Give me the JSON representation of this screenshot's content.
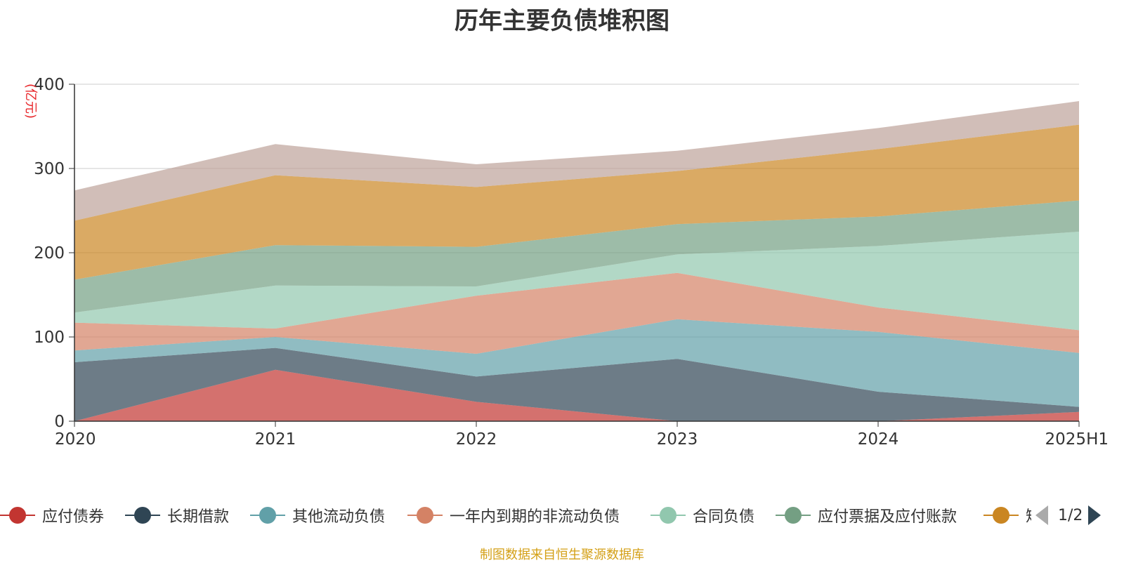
{
  "title": "历年主要负债堆积图",
  "source_note": "制图数据来自恒生聚源数据库",
  "legend_page": "1/2",
  "chart_data": {
    "type": "area",
    "stacked": true,
    "title": "历年主要负债堆积图",
    "unit": "(亿元)",
    "xlabel": "",
    "ylabel": "",
    "x": [
      "2020",
      "2021",
      "2022",
      "2023",
      "2024",
      "2025H1"
    ],
    "ylim": [
      0,
      400
    ],
    "yticks": [
      0,
      100,
      200,
      300,
      400
    ],
    "grid": true,
    "legend_position": "bottom",
    "series": [
      {
        "name": "应付债券",
        "color": "#c23531",
        "values": [
          0,
          61,
          23,
          0,
          0,
          11
        ]
      },
      {
        "name": "长期借款",
        "color": "#2f4554",
        "values": [
          70,
          26,
          30,
          74,
          35,
          6
        ]
      },
      {
        "name": "其他流动负债",
        "color": "#61a0a8",
        "values": [
          14,
          13,
          27,
          47,
          71,
          64
        ]
      },
      {
        "name": "一年内到期的非流动负债",
        "color": "#d48265",
        "values": [
          33,
          10,
          69,
          55,
          29,
          27
        ]
      },
      {
        "name": "合同负债",
        "color": "#91c7ae",
        "values": [
          12,
          51,
          11,
          22,
          73,
          117
        ]
      },
      {
        "name": "应付票据及应付账款",
        "color": "#749f83",
        "values": [
          39,
          48,
          47,
          36,
          35,
          37
        ]
      },
      {
        "name": "短",
        "color": "#ca8622",
        "values": [
          70,
          83,
          71,
          63,
          80,
          90
        ]
      },
      {
        "name": "",
        "color": "#bda29a",
        "values": [
          36,
          37,
          27,
          24,
          25,
          28
        ]
      }
    ]
  }
}
